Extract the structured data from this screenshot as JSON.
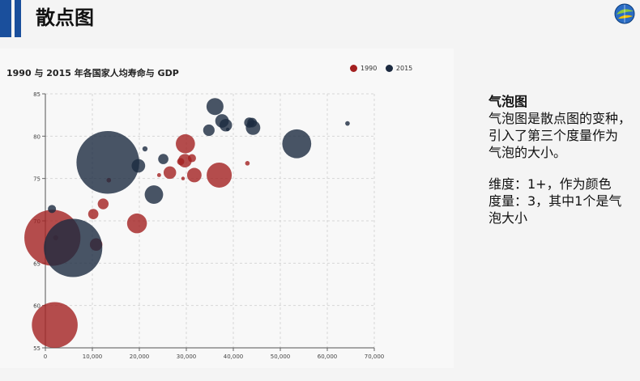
{
  "page": {
    "title": "散点图"
  },
  "side_panel": {
    "heading": "气泡图",
    "line1": "气泡图是散点图的变种，",
    "line2": "引入了第三个度量作为",
    "line3": "气泡的大小。",
    "line4": "维度：1+，作为颜色",
    "line5": "度量：3，其中1个是气",
    "line6": "泡大小"
  },
  "colors": {
    "accent": "#1a4f9c",
    "series_1990": "#a32020",
    "series_2015": "#1c2a40"
  },
  "chart_data": {
    "type": "scatter",
    "title": "1990 与 2015 年各国家人均寿命与 GDP",
    "xlabel": "",
    "ylabel": "",
    "xlim": [
      0,
      70000
    ],
    "ylim": [
      55,
      85
    ],
    "x_ticks": [
      "0",
      "10,000",
      "20,000",
      "30,000",
      "40,000",
      "50,000",
      "60,000",
      "70,000"
    ],
    "y_ticks": [
      "55",
      "60",
      "65",
      "70",
      "75",
      "80",
      "85"
    ],
    "legend_position": "top-right",
    "grid": true,
    "series": [
      {
        "name": "1990",
        "points": [
          {
            "x": 1500,
            "y": 68,
            "size": 1200
          },
          {
            "x": 2000,
            "y": 57.7,
            "size": 800
          },
          {
            "x": 2200,
            "y": 68,
            "size": 10
          },
          {
            "x": 10200,
            "y": 70.8,
            "size": 40
          },
          {
            "x": 10800,
            "y": 67.2,
            "size": 60
          },
          {
            "x": 12300,
            "y": 72,
            "size": 45
          },
          {
            "x": 13500,
            "y": 74.8,
            "size": 8
          },
          {
            "x": 19500,
            "y": 69.7,
            "size": 150
          },
          {
            "x": 24200,
            "y": 75.4,
            "size": 6
          },
          {
            "x": 26500,
            "y": 75.7,
            "size": 60
          },
          {
            "x": 28800,
            "y": 77,
            "size": 20
          },
          {
            "x": 29300,
            "y": 75,
            "size": 5
          },
          {
            "x": 29700,
            "y": 77.1,
            "size": 70
          },
          {
            "x": 29800,
            "y": 79.1,
            "size": 140
          },
          {
            "x": 31200,
            "y": 77.4,
            "size": 25
          },
          {
            "x": 31700,
            "y": 75.4,
            "size": 80
          },
          {
            "x": 37000,
            "y": 75.4,
            "size": 240
          },
          {
            "x": 43000,
            "y": 76.8,
            "size": 8
          }
        ]
      },
      {
        "name": "2015",
        "points": [
          {
            "x": 1400,
            "y": 71.4,
            "size": 25
          },
          {
            "x": 5900,
            "y": 66.8,
            "size": 1300
          },
          {
            "x": 13300,
            "y": 76.9,
            "size": 1500
          },
          {
            "x": 19800,
            "y": 76.5,
            "size": 70
          },
          {
            "x": 21200,
            "y": 78.5,
            "size": 10
          },
          {
            "x": 23100,
            "y": 73.1,
            "size": 130
          },
          {
            "x": 25100,
            "y": 77.3,
            "size": 40
          },
          {
            "x": 34800,
            "y": 80.7,
            "size": 50
          },
          {
            "x": 36100,
            "y": 83.5,
            "size": 110
          },
          {
            "x": 37600,
            "y": 81.8,
            "size": 70
          },
          {
            "x": 38400,
            "y": 81.3,
            "size": 60
          },
          {
            "x": 38800,
            "y": 80.8,
            "size": 5
          },
          {
            "x": 43400,
            "y": 81.6,
            "size": 40
          },
          {
            "x": 44000,
            "y": 81.6,
            "size": 35
          },
          {
            "x": 44200,
            "y": 81,
            "size": 80
          },
          {
            "x": 53500,
            "y": 79.1,
            "size": 320
          },
          {
            "x": 64300,
            "y": 81.5,
            "size": 8
          }
        ]
      }
    ]
  }
}
